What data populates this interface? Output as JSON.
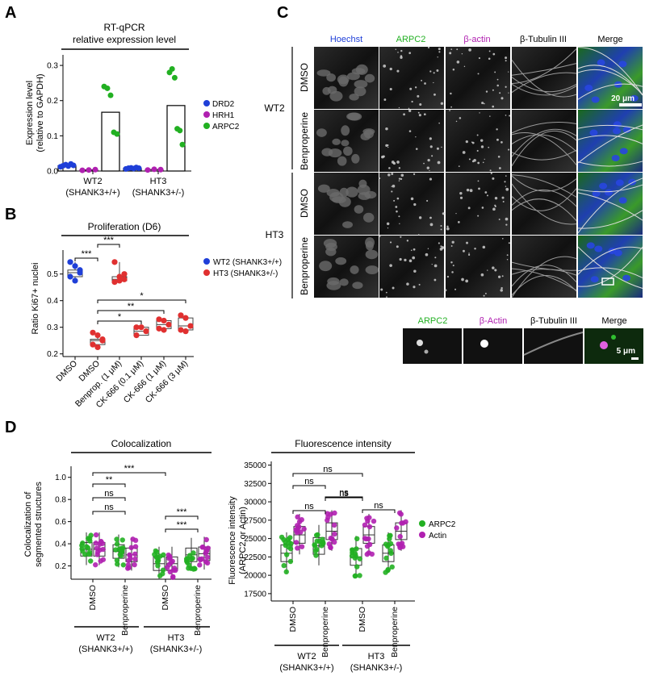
{
  "panelA": {
    "letter": "A",
    "title1": "RT-qPCR",
    "title2": "relative expression level",
    "ylabel1": "Expression level",
    "ylabel2": "(relative to GAPDH)",
    "yticks": [
      "0.0",
      "0.1",
      "0.2",
      "0.3"
    ],
    "groups": [
      {
        "label1": "WT2",
        "label2": "(SHANK3+/+)"
      },
      {
        "label1": "HT3",
        "label2": "(SHANK3+/-)"
      }
    ],
    "legend": [
      "DRD2",
      "HRH1",
      "ARPC2"
    ],
    "colors": {
      "DRD2": "#1f3fd8",
      "HRH1": "#b020b0",
      "ARPC2": "#22b022"
    }
  },
  "panelB": {
    "letter": "B",
    "title": "Proliferation (D6)",
    "ylabel": "Ratio Ki67+ nuclei",
    "yticks": [
      "0.2",
      "0.3",
      "0.4",
      "0.5"
    ],
    "xlabels": [
      "DMSO",
      "DMSO",
      "Benprop. (1 μM)",
      "CK-666 (0.1 μM)",
      "CK-666 (1 μM)",
      "CK-666 (3 μM)"
    ],
    "legend": [
      "WT2 (SHANK3+/+)",
      "HT3 (SHANK3+/-)"
    ],
    "sig": [
      "***",
      "***",
      "*",
      "**",
      "*"
    ]
  },
  "panelC": {
    "letter": "C",
    "channels": [
      "Hoechst",
      "ARPC2",
      "β-actin",
      "β-Tubulin III",
      "Merge"
    ],
    "channel_colors": [
      "#1f3fd8",
      "#22b022",
      "#b020b0",
      "#000000",
      "#000000"
    ],
    "lines": [
      "WT2",
      "HT3"
    ],
    "treatments": [
      "DMSO",
      "Benproperine"
    ],
    "scale_main": "20 μm",
    "zoom_channels": [
      "ARPC2",
      "β-Actin",
      "β-Tubulin III",
      "Merge"
    ],
    "scale_zoom": "5 μm"
  },
  "panelD": {
    "letter": "D",
    "left": {
      "title": "Colocalization",
      "ylabel1": "Colocalization of",
      "ylabel2": "segmented structures",
      "yticks": [
        "0.2",
        "0.4",
        "0.6",
        "0.8",
        "1.0"
      ],
      "sig": [
        "***",
        "**",
        "ns",
        "ns",
        "***",
        "***"
      ]
    },
    "right": {
      "title": "Fluorescence intensity",
      "ylabel1": "Fluorescence intensity",
      "ylabel2": "(ARPC2 or Actin)",
      "yticks": [
        "17500",
        "20000",
        "22500",
        "25000",
        "27500",
        "30000",
        "32500",
        "35000"
      ],
      "sig": [
        "ns",
        "ns",
        "ns",
        "ns",
        "ns",
        "ns"
      ]
    },
    "xlabels": [
      "DMSO",
      "Benproperine",
      "DMSO",
      "Benproperine"
    ],
    "groups": [
      {
        "label1": "WT2",
        "label2": "(SHANK3+/+)"
      },
      {
        "label1": "HT3",
        "label2": "(SHANK3+/-)"
      }
    ],
    "legend": [
      "ARPC2",
      "Actin"
    ]
  },
  "chart_data": [
    {
      "type": "bar",
      "title": "RT-qPCR relative expression level",
      "ylabel": "Expression level (relative to GAPDH)",
      "ylim": [
        0,
        0.33
      ],
      "categories": [
        "WT2 (SHANK3+/+)",
        "HT3 (SHANK3+/-)"
      ],
      "series": [
        {
          "name": "DRD2",
          "values": [
            0.015,
            0.008
          ],
          "points": [
            [
              0.012,
              0.015,
              0.018,
              0.014,
              0.02,
              0.016
            ],
            [
              0.006,
              0.008,
              0.009,
              0.007,
              0.01,
              0.008
            ]
          ]
        },
        {
          "name": "HRH1",
          "values": [
            0.003,
            0.004
          ],
          "points": [
            [
              0.002,
              0.003,
              0.004
            ],
            [
              0.003,
              0.005,
              0.004
            ]
          ]
        },
        {
          "name": "ARPC2",
          "values": [
            0.167,
            0.186
          ],
          "points": [
            [
              0.24,
              0.235,
              0.215,
              0.11,
              0.105
            ],
            [
              0.28,
              0.29,
              0.265,
              0.12,
              0.115,
              0.075
            ]
          ]
        }
      ]
    },
    {
      "type": "scatter",
      "title": "Proliferation (D6)",
      "ylabel": "Ratio Ki67+ nuclei",
      "ylim": [
        0.19,
        0.59
      ],
      "categories": [
        "DMSO",
        "DMSO",
        "Benprop. (1 μM)",
        "CK-666 (0.1 μM)",
        "CK-666 (1 μM)",
        "CK-666 (3 μM)"
      ],
      "series": [
        {
          "name": "WT2 (SHANK3+/+)",
          "points": [
            [
              0.545,
              0.53,
              0.515,
              0.49,
              0.475,
              0.505
            ]
          ]
        },
        {
          "name": "HT3 (SHANK3+/-)",
          "points": [
            [
              0.28,
              0.27,
              0.255,
              0.235,
              0.225,
              0.25
            ],
            [
              0.545,
              0.49,
              0.48,
              0.47,
              0.475,
              0.5
            ],
            [
              0.3,
              0.3,
              0.285,
              0.27
            ],
            [
              0.33,
              0.325,
              0.31,
              0.295,
              0.29
            ],
            [
              0.345,
              0.335,
              0.305,
              0.29,
              0.285
            ]
          ]
        }
      ]
    },
    {
      "type": "scatter",
      "title": "Colocalization",
      "ylabel": "Colocalization of segmented structures",
      "ylim": [
        0.08,
        1.1
      ],
      "categories": [
        "WT2 DMSO",
        "WT2 Benproperine",
        "HT3 DMSO",
        "HT3 Benproperine"
      ],
      "series": [
        {
          "name": "ARPC2",
          "median": [
            0.35,
            0.33,
            0.22,
            0.3
          ]
        },
        {
          "name": "Actin",
          "median": [
            0.35,
            0.3,
            0.22,
            0.31
          ]
        }
      ]
    },
    {
      "type": "scatter",
      "title": "Fluorescence intensity",
      "ylabel": "Fluorescence intensity (ARPC2 or Actin)",
      "ylim": [
        16500,
        35500
      ],
      "categories": [
        "WT2 DMSO",
        "WT2 Benproperine",
        "HT3 DMSO",
        "HT3 Benproperine"
      ],
      "series": [
        {
          "name": "ARPC2",
          "median": [
            23000,
            24000,
            22500,
            23000
          ]
        },
        {
          "name": "Actin",
          "median": [
            25500,
            26000,
            25500,
            26000
          ]
        }
      ]
    }
  ]
}
